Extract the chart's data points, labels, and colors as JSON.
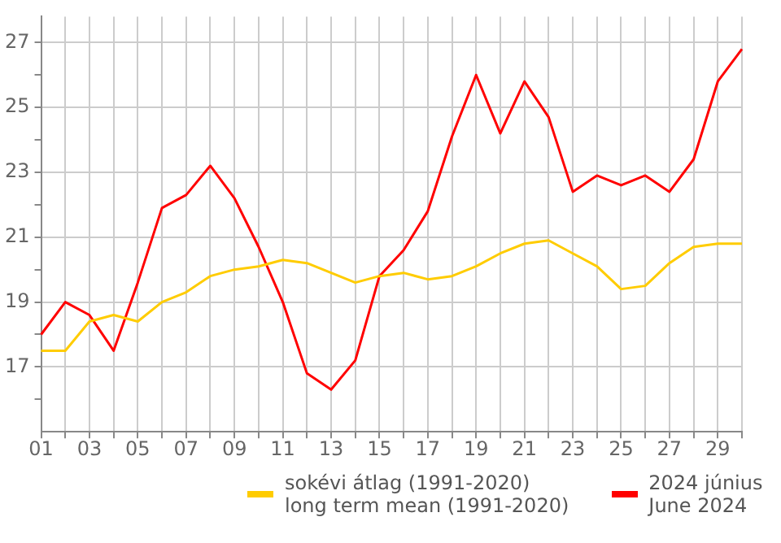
{
  "chart_data": {
    "type": "line",
    "categories": [
      "01",
      null,
      "03",
      null,
      "05",
      null,
      "07",
      null,
      "09",
      null,
      "11",
      null,
      "13",
      null,
      "15",
      null,
      "17",
      null,
      "19",
      null,
      "21",
      null,
      "23",
      null,
      "25",
      null,
      "27",
      null,
      "29",
      null
    ],
    "series": [
      {
        "name": "sokévi átlag (1991-2020)\nlong term mean (1991-2020)",
        "color": "#ffcc00",
        "values": [
          17.5,
          17.5,
          18.4,
          18.6,
          18.4,
          19.0,
          19.3,
          19.8,
          20.0,
          20.1,
          20.3,
          20.2,
          19.9,
          19.6,
          19.8,
          19.9,
          19.7,
          19.8,
          20.1,
          20.5,
          20.8,
          20.9,
          20.5,
          20.1,
          19.4,
          19.5,
          20.2,
          20.7,
          20.8,
          20.8
        ]
      },
      {
        "name": "2024 június\nJune 2024",
        "color": "#ff0000",
        "values": [
          18.0,
          19.0,
          18.6,
          17.5,
          19.6,
          21.9,
          22.3,
          23.2,
          22.2,
          20.7,
          19.0,
          16.8,
          16.3,
          17.2,
          19.8,
          20.6,
          21.8,
          24.1,
          26.0,
          24.2,
          25.8,
          24.7,
          22.4,
          22.9,
          22.6,
          22.9,
          22.4,
          23.4,
          25.8,
          26.8
        ]
      }
    ],
    "ylim": [
      15,
      27.8
    ],
    "yticks": [
      {
        "value": 16,
        "label": null
      },
      17,
      {
        "value": 18,
        "label": null
      },
      19,
      {
        "value": 20,
        "label": null
      },
      21,
      {
        "value": 22,
        "label": null
      },
      23,
      {
        "value": 24,
        "label": null
      },
      25,
      {
        "value": 26,
        "label": null
      },
      27
    ],
    "grid": true,
    "legend": "bottom",
    "marker": "none",
    "line_style": "solid"
  }
}
